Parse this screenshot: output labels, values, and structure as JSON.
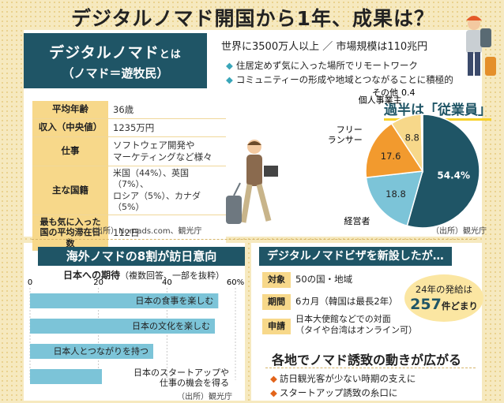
{
  "title": "デジタルノマド開国から1年、成果は？",
  "definition": {
    "heading": "デジタルノマド",
    "heading_suffix": "とは",
    "subtitle": "（ノマド＝遊牧民）",
    "stats": "世界に3500万人以上 ／ 市場規模は110兆円",
    "bullets": [
      "住居定めず気に入った場所でリモートワーク",
      "コミュニティーの形成や地域とつながることに積極的"
    ]
  },
  "profile_table": [
    {
      "key": "平均年齢",
      "value": "36歳"
    },
    {
      "key": "収入（中央値）",
      "value": "1235万円"
    },
    {
      "key": "仕事",
      "value": "ソフトウェア開発や\nマーケティングなど様々"
    },
    {
      "key": "主な国籍",
      "value": "米国（44%）、英国（7%）、\nロシア（5%）、カナダ（5%）"
    },
    {
      "key": "最も気に入った\n国の平均滞在日数",
      "value": "112日"
    }
  ],
  "profile_source": "（出所）Nomads.com、観光庁",
  "pie_source": "（出所）観光庁",
  "bar_source": "（出所）観光庁",
  "bar_section_title": "海外ノマドの8割が訪日意向",
  "visa": {
    "title": "デジタルノマドビザを新設したが…",
    "rows": [
      {
        "key": "対象",
        "value": "50の国・地域"
      },
      {
        "key": "期間",
        "value": "6カ月（韓国は最長2年）"
      },
      {
        "key": "申請",
        "value": "日本大使館などでの対面\n（タイや台湾はオンライン可）"
      }
    ],
    "issued_line1": "24年の発給は",
    "issued_number": "257",
    "issued_suffix": "件どまり"
  },
  "invite": {
    "title": "各地でノマド誘致の動きが広がる",
    "bullets": [
      "訪日観光客が少ない時期の支えに",
      "スタートアップ誘致の糸口に"
    ]
  },
  "chart_data": [
    {
      "type": "pie",
      "title": "過半は「従業員」",
      "labels": [
        "従業員",
        "経営者",
        "フリーランサー",
        "個人事業主",
        "その他"
      ],
      "label_text": [
        "従業員",
        "経営者",
        "フリー\nランサー",
        "個人事業主",
        "その他"
      ],
      "values": [
        54.4,
        18.8,
        17.6,
        8.8,
        0.4
      ],
      "value_labels": [
        "54.4%",
        "18.8",
        "17.6",
        "8.8",
        "0.4"
      ],
      "colors": [
        "#1f5566",
        "#7cc4d8",
        "#f29a2e",
        "#f7d88a",
        "#e8e0c0"
      ]
    },
    {
      "type": "bar",
      "title": "日本への期待",
      "subtitle": "（複数回答、一部を抜粋）",
      "orientation": "horizontal",
      "xlim": [
        0,
        60
      ],
      "xticks": [
        "0",
        "20",
        "40",
        "60%"
      ],
      "categories": [
        "日本の食事を楽しむ",
        "日本の文化を楽しむ",
        "日本人とつながりを持つ",
        "日本のスタートアップや\n仕事の機会を得る"
      ],
      "values": [
        55,
        54,
        36,
        21
      ],
      "color": "#7cc4d8"
    }
  ]
}
